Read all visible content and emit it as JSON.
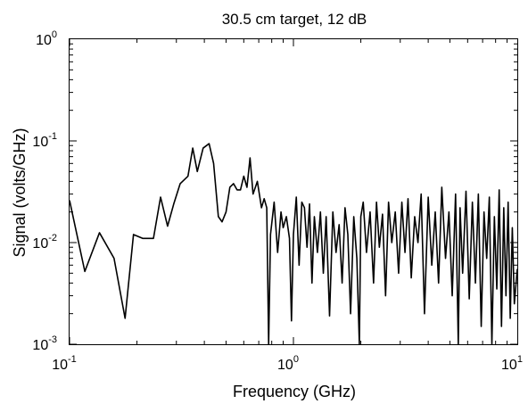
{
  "chart_data": {
    "type": "line",
    "title": "30.5 cm target, 12 dB",
    "xlabel": "Frequency (GHz)",
    "ylabel": "Signal (volts/GHz)",
    "xscale": "log",
    "yscale": "log",
    "xlim": [
      0.1,
      10
    ],
    "ylim": [
      0.001,
      1
    ],
    "grid": false,
    "x_ticks": [
      {
        "value": 0.1,
        "base": "10",
        "exp": "-1"
      },
      {
        "value": 1,
        "base": "10",
        "exp": "0"
      },
      {
        "value": 10,
        "base": "10",
        "exp": "1"
      }
    ],
    "y_ticks": [
      {
        "value": 0.001,
        "base": "10",
        "exp": "-3"
      },
      {
        "value": 0.01,
        "base": "10",
        "exp": "-2"
      },
      {
        "value": 0.1,
        "base": "10",
        "exp": "-1"
      },
      {
        "value": 1,
        "base": "10",
        "exp": "0"
      }
    ],
    "series_color": "#000000",
    "series": [
      {
        "x": [
          0.1,
          0.117,
          0.136,
          0.158,
          0.177,
          0.193,
          0.212,
          0.237,
          0.255,
          0.274,
          0.292,
          0.312,
          0.338,
          0.355,
          0.372,
          0.395,
          0.42,
          0.44,
          0.462,
          0.48,
          0.5,
          0.52,
          0.54,
          0.56,
          0.58,
          0.6,
          0.62,
          0.64,
          0.66,
          0.69,
          0.72,
          0.74,
          0.76,
          0.775,
          0.79,
          0.82,
          0.85,
          0.88,
          0.9,
          0.93,
          0.96,
          0.98,
          1.0,
          1.03,
          1.06,
          1.09,
          1.12,
          1.15,
          1.18,
          1.21,
          1.24,
          1.28,
          1.32,
          1.36,
          1.4,
          1.45,
          1.5,
          1.55,
          1.6,
          1.65,
          1.7,
          1.75,
          1.8,
          1.86,
          1.92,
          1.97,
          2.0,
          2.05,
          2.12,
          2.2,
          2.28,
          2.35,
          2.42,
          2.5,
          2.58,
          2.66,
          2.75,
          2.85,
          2.95,
          3.05,
          3.15,
          3.25,
          3.36,
          3.48,
          3.6,
          3.72,
          3.85,
          4.0,
          4.15,
          4.3,
          4.45,
          4.6,
          4.78,
          4.95,
          5.12,
          5.3,
          5.45,
          5.55,
          5.7,
          5.9,
          6.1,
          6.3,
          6.5,
          6.7,
          6.9,
          7.1,
          7.3,
          7.5,
          7.7,
          7.9,
          8.1,
          8.3,
          8.5,
          8.7,
          8.9,
          9.1,
          9.3,
          9.5,
          9.7,
          10.0
        ],
        "y": [
          0.026,
          0.0052,
          0.0125,
          0.007,
          0.0018,
          0.012,
          0.011,
          0.011,
          0.028,
          0.0145,
          0.024,
          0.038,
          0.045,
          0.085,
          0.05,
          0.085,
          0.094,
          0.06,
          0.018,
          0.016,
          0.02,
          0.035,
          0.038,
          0.033,
          0.033,
          0.045,
          0.035,
          0.068,
          0.03,
          0.04,
          0.022,
          0.027,
          0.022,
          0.001,
          0.012,
          0.025,
          0.008,
          0.02,
          0.014,
          0.018,
          0.011,
          0.0017,
          0.012,
          0.028,
          0.006,
          0.025,
          0.022,
          0.009,
          0.024,
          0.004,
          0.018,
          0.008,
          0.02,
          0.005,
          0.018,
          0.0019,
          0.02,
          0.008,
          0.015,
          0.004,
          0.022,
          0.012,
          0.002,
          0.018,
          0.007,
          0.001,
          0.018,
          0.025,
          0.008,
          0.02,
          0.004,
          0.025,
          0.009,
          0.019,
          0.003,
          0.025,
          0.01,
          0.02,
          0.005,
          0.025,
          0.008,
          0.027,
          0.0045,
          0.018,
          0.01,
          0.03,
          0.002,
          0.028,
          0.006,
          0.02,
          0.004,
          0.035,
          0.007,
          0.02,
          0.003,
          0.03,
          0.001,
          0.022,
          0.005,
          0.032,
          0.0028,
          0.025,
          0.004,
          0.03,
          0.0015,
          0.02,
          0.007,
          0.028,
          0.001,
          0.018,
          0.0035,
          0.033,
          0.0015,
          0.022,
          0.003,
          0.025,
          0.0018,
          0.014,
          0.0025,
          0.0055
        ]
      }
    ]
  }
}
